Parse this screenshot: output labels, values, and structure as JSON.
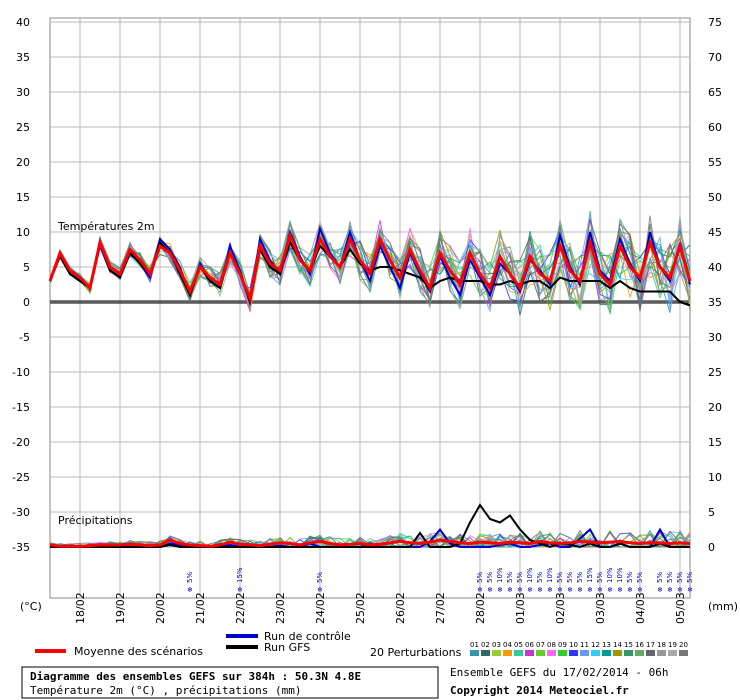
{
  "chart_data": {
    "type": "line",
    "title": "Diagramme des ensembles GEFS sur 384h : 50.3N 4.8E",
    "subtitle": "Température 2m (°C) , précipitations (mm)",
    "run_info": "Ensemble GEFS du 17/02/2014 - 06h",
    "copyright": "Copyright 2014 Meteociel.fr",
    "y_left_unit": "(°C)",
    "y_right_unit": "(mm)",
    "temp_label": "Températures 2m",
    "precip_label": "Précipitations",
    "y_left_ticks": [
      "40",
      "35",
      "30",
      "25",
      "20",
      "15",
      "10",
      "5",
      "0",
      "-5",
      "-10",
      "-15",
      "-20",
      "-25",
      "-30",
      "-35"
    ],
    "y_right_ticks": [
      "75",
      "70",
      "65",
      "60",
      "55",
      "50",
      "45",
      "40",
      "35",
      "30",
      "25",
      "20",
      "15",
      "10",
      "5",
      "0"
    ],
    "x_labels": [
      "18/02",
      "19/02",
      "20/02",
      "21/02",
      "22/02",
      "23/02",
      "24/02",
      "25/02",
      "26/02",
      "27/02",
      "28/02",
      "01/03",
      "02/03",
      "03/03",
      "04/03",
      "05/03"
    ],
    "temperature": {
      "x_hours": [
        0,
        6,
        12,
        18,
        24,
        30,
        36,
        42,
        48,
        54,
        60,
        66,
        72,
        78,
        84,
        90,
        96,
        102,
        108,
        114,
        120,
        126,
        132,
        138,
        144,
        150,
        156,
        162,
        168,
        174,
        180,
        186,
        192,
        198,
        204,
        210,
        216,
        222,
        228,
        234,
        240,
        246,
        252,
        258,
        264,
        270,
        276,
        282,
        288,
        294,
        300,
        306,
        312,
        318,
        324,
        330,
        336,
        342,
        348,
        354,
        360,
        366,
        372,
        378,
        384
      ],
      "series": [
        {
          "name": "Moyenne des scénarios",
          "color": "#ff0000",
          "values": [
            3.0,
            7.0,
            4.5,
            3.5,
            2.0,
            8.5,
            5.0,
            4.0,
            7.5,
            6.0,
            4.0,
            8.0,
            7.0,
            4.5,
            1.5,
            5.0,
            3.5,
            2.5,
            7.0,
            4.0,
            0.5,
            8.0,
            5.5,
            4.5,
            9.5,
            6.0,
            4.5,
            9.0,
            6.5,
            5.0,
            9.0,
            6.0,
            4.0,
            9.0,
            6.0,
            3.5,
            7.5,
            4.5,
            2.0,
            7.0,
            4.5,
            2.5,
            7.0,
            4.0,
            2.0,
            6.5,
            4.0,
            2.0,
            6.5,
            4.0,
            3.0,
            8.0,
            4.5,
            3.0,
            8.5,
            4.0,
            2.5,
            8.0,
            5.0,
            3.5,
            8.5,
            5.0,
            3.5,
            8.0,
            3.0
          ]
        },
        {
          "name": "Run de contrôle",
          "color": "#0000cc",
          "values": [
            3.0,
            7.0,
            4.0,
            3.0,
            2.0,
            8.0,
            4.5,
            3.5,
            7.0,
            5.5,
            3.5,
            9.0,
            7.5,
            5.0,
            1.0,
            5.5,
            3.0,
            2.0,
            8.0,
            4.5,
            0.0,
            9.0,
            6.0,
            4.0,
            10.0,
            6.5,
            4.0,
            10.5,
            7.0,
            5.0,
            10.0,
            6.0,
            3.0,
            8.0,
            5.0,
            2.0,
            7.0,
            4.0,
            1.5,
            6.5,
            3.5,
            1.0,
            6.0,
            3.5,
            1.0,
            5.5,
            4.0,
            1.5,
            6.0,
            4.5,
            2.5,
            9.5,
            5.0,
            2.5,
            10.0,
            4.5,
            3.0,
            9.0,
            5.5,
            3.0,
            10.0,
            5.0,
            3.0,
            8.5,
            2.5
          ]
        },
        {
          "name": "Run GFS",
          "color": "#000000",
          "values": [
            3.0,
            6.5,
            4.0,
            3.0,
            2.0,
            8.5,
            4.5,
            3.5,
            7.0,
            5.5,
            4.0,
            8.5,
            7.0,
            4.0,
            1.0,
            5.0,
            3.0,
            2.0,
            7.0,
            4.0,
            0.0,
            7.5,
            5.0,
            4.0,
            8.5,
            6.0,
            4.5,
            8.0,
            6.5,
            5.0,
            7.5,
            5.5,
            4.5,
            5.0,
            5.0,
            4.5,
            4.0,
            3.5,
            2.0,
            3.0,
            3.5,
            3.0,
            3.0,
            3.0,
            2.5,
            2.5,
            3.0,
            2.5,
            3.0,
            3.0,
            2.0,
            3.5,
            3.0,
            3.0,
            3.0,
            3.0,
            2.0,
            3.0,
            2.0,
            1.5,
            1.5,
            1.5,
            1.5,
            0.0,
            -0.5
          ]
        }
      ]
    },
    "precipitation": {
      "x_hours": [
        0,
        6,
        12,
        18,
        24,
        30,
        36,
        42,
        48,
        54,
        60,
        66,
        72,
        78,
        84,
        90,
        96,
        102,
        108,
        114,
        120,
        126,
        132,
        138,
        144,
        150,
        156,
        162,
        168,
        174,
        180,
        186,
        192,
        198,
        204,
        210,
        216,
        222,
        228,
        234,
        240,
        246,
        252,
        258,
        264,
        270,
        276,
        282,
        288,
        294,
        300,
        306,
        312,
        318,
        324,
        330,
        336,
        342,
        348,
        354,
        360,
        366,
        372,
        378,
        384
      ],
      "series": [
        {
          "name": "Moyenne des scénarios",
          "color": "#ff0000",
          "values": [
            0.3,
            0.1,
            0.1,
            0.1,
            0.2,
            0.3,
            0.3,
            0.3,
            0.4,
            0.3,
            0.2,
            0.3,
            1.0,
            0.5,
            0.3,
            0.2,
            0.1,
            0.3,
            0.7,
            0.4,
            0.3,
            0.2,
            0.4,
            0.6,
            0.5,
            0.3,
            0.6,
            0.8,
            0.5,
            0.3,
            0.4,
            0.5,
            0.3,
            0.4,
            0.6,
            0.8,
            0.6,
            0.5,
            0.7,
            1.0,
            0.8,
            0.6,
            0.5,
            0.7,
            0.6,
            0.5,
            0.7,
            0.6,
            0.5,
            0.8,
            0.6,
            0.5,
            0.6,
            0.8,
            0.7,
            0.6,
            0.7,
            0.8,
            0.6,
            0.5,
            0.6,
            0.6,
            0.5,
            0.6,
            0.5
          ]
        },
        {
          "name": "Run de contrôle",
          "color": "#0000cc",
          "values": [
            0,
            0,
            0,
            0,
            0,
            0,
            0,
            0,
            0,
            0,
            0,
            0,
            0.5,
            0.3,
            0,
            0,
            0,
            0,
            0.3,
            0,
            0,
            0,
            0,
            0.2,
            0,
            0,
            0.5,
            0,
            0,
            0,
            0,
            0,
            0.5,
            0,
            0,
            0,
            0,
            0,
            0.8,
            2.5,
            0.5,
            0,
            0,
            0,
            0,
            0.3,
            0.5,
            0,
            0,
            0.3,
            0.5,
            0,
            0,
            1.2,
            2.5,
            0,
            0,
            0.5,
            0,
            0,
            0,
            2.5,
            0,
            0,
            0
          ]
        },
        {
          "name": "Run GFS",
          "color": "#000000",
          "values": [
            0,
            0,
            0,
            0,
            0,
            0,
            0,
            0,
            0,
            0,
            0,
            0,
            0.3,
            0,
            0,
            0,
            0,
            0,
            0,
            0,
            0,
            0,
            0,
            0,
            0,
            0,
            0,
            0,
            0,
            0,
            0,
            0,
            0,
            0,
            0,
            0,
            0,
            2.0,
            0,
            0,
            0,
            0.5,
            3.5,
            6.0,
            4.0,
            3.5,
            4.5,
            2.5,
            1.0,
            0.5,
            0,
            0.5,
            0.3,
            0,
            0.5,
            0,
            0,
            0.5,
            0,
            0,
            0,
            0.5,
            0,
            0,
            0
          ]
        }
      ]
    },
    "snow_labels": [
      {
        "hour": 84,
        "text": "5%"
      },
      {
        "hour": 114,
        "text": "15%"
      },
      {
        "hour": 162,
        "text": "5%"
      },
      {
        "hour": 258,
        "text": "5%"
      },
      {
        "hour": 264,
        "text": "5%"
      },
      {
        "hour": 270,
        "text": "10%"
      },
      {
        "hour": 276,
        "text": "5%"
      },
      {
        "hour": 282,
        "text": "5%"
      },
      {
        "hour": 288,
        "text": "10%"
      },
      {
        "hour": 294,
        "text": "5%"
      },
      {
        "hour": 300,
        "text": "10%"
      },
      {
        "hour": 306,
        "text": "5%"
      },
      {
        "hour": 312,
        "text": "5%"
      },
      {
        "hour": 318,
        "text": "5%"
      },
      {
        "hour": 324,
        "text": "15%"
      },
      {
        "hour": 330,
        "text": "5%"
      },
      {
        "hour": 336,
        "text": "10%"
      },
      {
        "hour": 342,
        "text": "10%"
      },
      {
        "hour": 348,
        "text": "5%"
      },
      {
        "hour": 354,
        "text": "5%"
      },
      {
        "hour": 366,
        "text": "5%"
      },
      {
        "hour": 372,
        "text": "5%"
      },
      {
        "hour": 378,
        "text": "5%"
      },
      {
        "hour": 384,
        "text": "5%"
      }
    ],
    "legend": {
      "mean": "Moyenne des scénarios",
      "control": "Run de contrôle",
      "gfs": "Run GFS",
      "perturbations": "20 Perturbations",
      "pert_numbers": [
        "01",
        "02",
        "03",
        "04",
        "05",
        "06",
        "07",
        "08",
        "09",
        "10",
        "11",
        "12",
        "13",
        "14",
        "15",
        "16",
        "17",
        "18",
        "19",
        "20"
      ],
      "pert_colors": [
        "#3399aa",
        "#336666",
        "#99cc33",
        "#ff9900",
        "#33cc99",
        "#cc33cc",
        "#66cc33",
        "#ff66ff",
        "#33cc33",
        "#3333ff",
        "#6699ff",
        "#33ccff",
        "#009999",
        "#999900",
        "#339966",
        "#66aa66",
        "#666666",
        "#999999",
        "#aaaaaa",
        "#777777"
      ]
    }
  }
}
